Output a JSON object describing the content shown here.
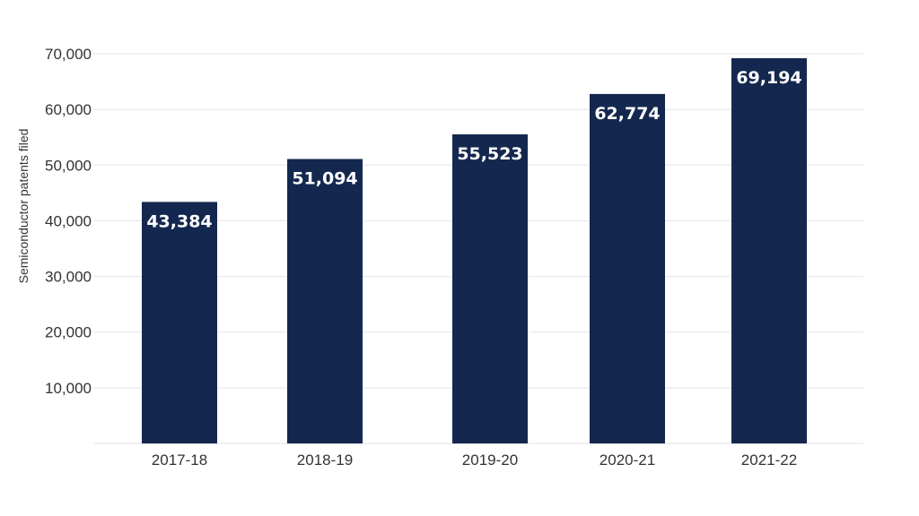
{
  "chart_data": {
    "type": "bar",
    "categories": [
      "2017-18",
      "2018-19",
      "2019-20",
      "2020-21",
      "2021-22"
    ],
    "values": [
      43384,
      51094,
      55523,
      62774,
      69194
    ],
    "value_labels": [
      "43,384",
      "51,094",
      "55,523",
      "62,774",
      "69,194"
    ],
    "title": "",
    "xlabel": "",
    "ylabel": "Semiconductor patents filed",
    "ylim": [
      0,
      70000
    ],
    "yticks": [
      10000,
      20000,
      30000,
      40000,
      50000,
      60000,
      70000
    ],
    "ytick_labels": [
      "10,000",
      "20,000",
      "30,000",
      "40,000",
      "50,000",
      "60,000",
      "70,000"
    ],
    "grid": true,
    "bar_color": "#14284f",
    "label_color": "#ffffff",
    "grid_color": "#ececf0"
  }
}
